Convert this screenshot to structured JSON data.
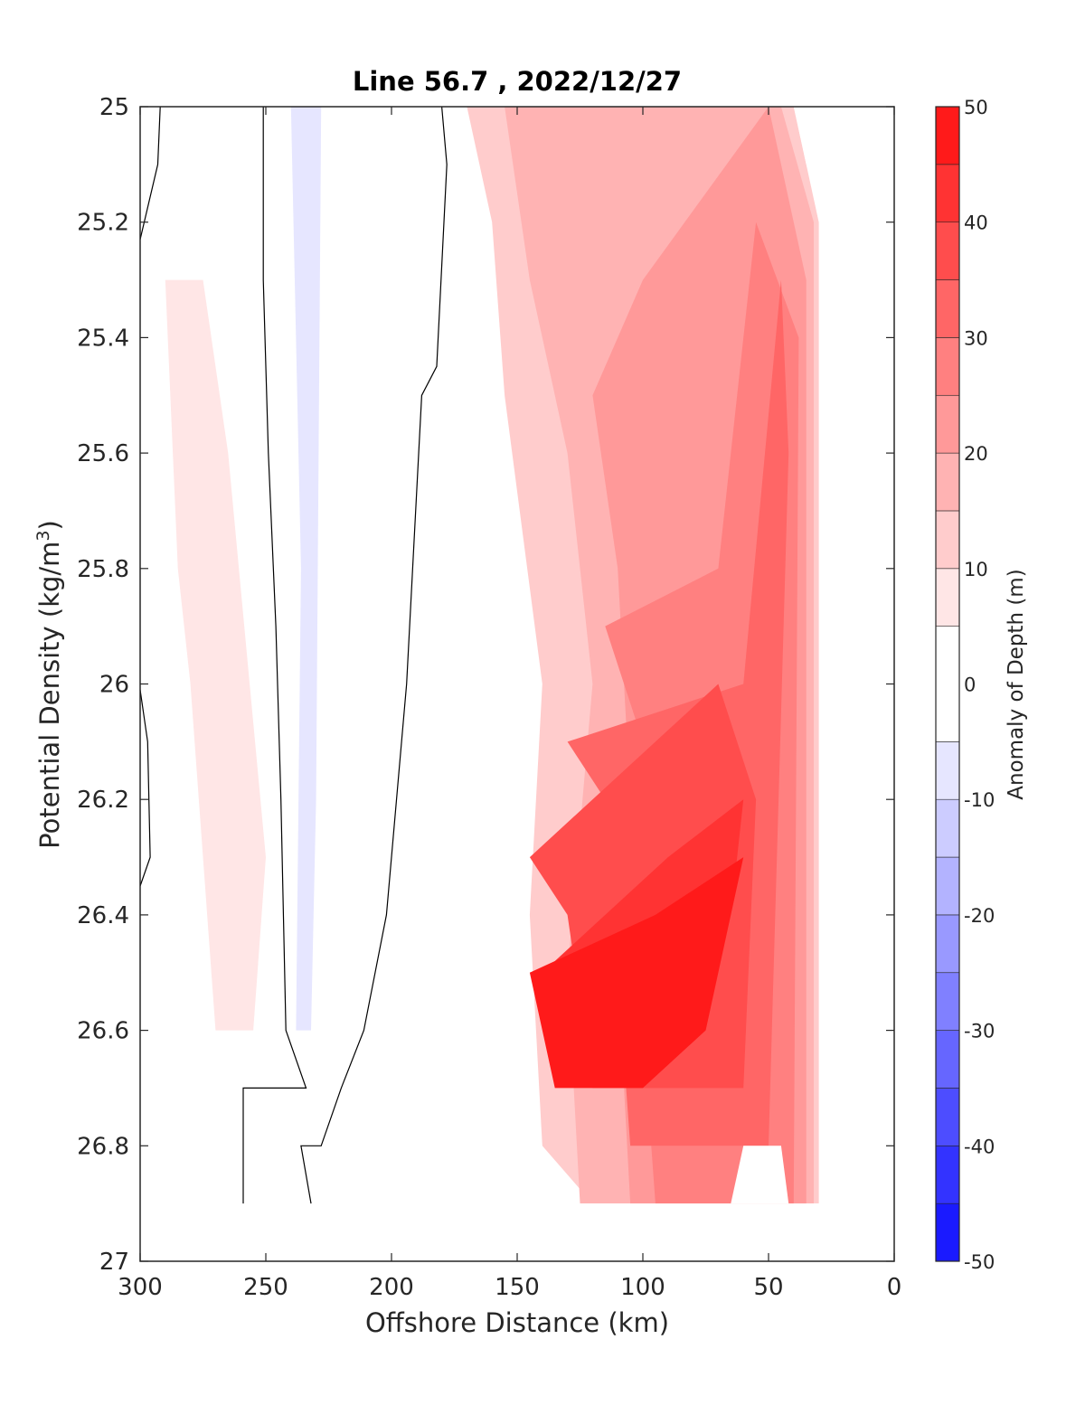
{
  "chart_data": {
    "type": "contour",
    "title": "Line 56.7 , 2022/12/27",
    "xlabel": "Offshore Distance (km)",
    "ylabel_main": "Potential Density (kg/m",
    "ylabel_sup": "3",
    "ylabel_close": ")",
    "colorbar_label": "Anomaly of Depth (m)",
    "xlim": [
      300,
      0
    ],
    "ylim": [
      25,
      27
    ],
    "x_reversed": true,
    "y_reversed": true,
    "x_ticks": [
      300,
      250,
      200,
      150,
      100,
      50,
      0
    ],
    "x_tick_labels": [
      "300",
      "250",
      "200",
      "150",
      "100",
      "50",
      "0"
    ],
    "y_ticks": [
      25,
      25.2,
      25.4,
      25.6,
      25.8,
      26,
      26.2,
      26.4,
      26.6,
      26.8,
      27
    ],
    "y_tick_labels": [
      "25",
      "25.2",
      "25.4",
      "25.6",
      "25.8",
      "26",
      "26.2",
      "26.4",
      "26.6",
      "26.8",
      "27"
    ],
    "colorbar": {
      "range": [
        -50,
        50
      ],
      "tick_values": [
        50,
        40,
        30,
        20,
        10,
        0,
        -10,
        -20,
        -30,
        -40,
        -50
      ],
      "tick_labels": [
        "50",
        "40",
        "30",
        "20",
        "10",
        "0",
        "-10",
        "-20",
        "-30",
        "-40",
        "-50"
      ],
      "levels": [
        -50,
        -45,
        -40,
        -35,
        -30,
        -25,
        -20,
        -15,
        -10,
        -5,
        5,
        10,
        15,
        20,
        25,
        30,
        35,
        40,
        45,
        50
      ],
      "colors": [
        "#0000ff",
        "#1a1aff",
        "#3333ff",
        "#4d4dff",
        "#6666ff",
        "#8080ff",
        "#9999ff",
        "#b3b3ff",
        "#ccccff",
        "#e6e6ff",
        "#ffffff",
        "#ffe6e6",
        "#ffcccc",
        "#ffb3b3",
        "#ff9999",
        "#ff8080",
        "#ff6666",
        "#ff4d4d",
        "#ff3333",
        "#ff1a1a",
        "#ff0000"
      ]
    },
    "zero_contour_lines": [
      [
        [
          300,
          25.23
        ],
        [
          293,
          25.1
        ],
        [
          292,
          25.0
        ]
      ],
      [
        [
          300,
          26.01
        ],
        [
          297,
          26.1
        ],
        [
          296,
          26.3
        ],
        [
          300,
          26.35
        ]
      ],
      [
        [
          251,
          25.0
        ],
        [
          251,
          25.3
        ],
        [
          249,
          25.6
        ],
        [
          246,
          25.9
        ],
        [
          244,
          26.2
        ],
        [
          242,
          26.6
        ],
        [
          234,
          26.7
        ],
        [
          259,
          26.7
        ],
        [
          259,
          26.9
        ]
      ],
      [
        [
          180,
          25.0
        ],
        [
          178,
          25.1
        ],
        [
          182,
          25.45
        ],
        [
          188,
          25.5
        ],
        [
          194,
          26.0
        ],
        [
          202,
          26.4
        ],
        [
          211,
          26.6
        ],
        [
          220,
          26.7
        ],
        [
          228,
          26.8
        ],
        [
          236,
          26.8
        ],
        [
          232,
          26.9
        ]
      ]
    ],
    "regions": [
      {
        "level": 10,
        "points": [
          [
            170,
            25.0
          ],
          [
            160,
            25.2
          ],
          [
            155,
            25.5
          ],
          [
            140,
            26.0
          ],
          [
            145,
            26.4
          ],
          [
            140,
            26.8
          ],
          [
            120,
            26.9
          ],
          [
            30,
            26.9
          ],
          [
            30,
            25.2
          ],
          [
            40,
            25.0
          ]
        ]
      },
      {
        "level": 15,
        "points": [
          [
            155,
            25.0
          ],
          [
            145,
            25.3
          ],
          [
            130,
            25.6
          ],
          [
            120,
            26.0
          ],
          [
            130,
            26.5
          ],
          [
            125,
            26.9
          ],
          [
            32,
            26.9
          ],
          [
            32,
            25.2
          ],
          [
            45,
            25.0
          ]
        ]
      },
      {
        "level": 20,
        "points": [
          [
            120,
            25.5
          ],
          [
            110,
            25.8
          ],
          [
            105,
            26.2
          ],
          [
            110,
            26.5
          ],
          [
            105,
            26.9
          ],
          [
            35,
            26.9
          ],
          [
            35,
            25.3
          ],
          [
            50,
            25.0
          ],
          [
            100,
            25.3
          ]
        ]
      },
      {
        "level": 25,
        "points": [
          [
            115,
            25.9
          ],
          [
            100,
            26.1
          ],
          [
            95,
            26.3
          ],
          [
            100,
            26.6
          ],
          [
            95,
            26.9
          ],
          [
            40,
            26.9
          ],
          [
            38,
            25.4
          ],
          [
            55,
            25.2
          ],
          [
            70,
            25.8
          ]
        ]
      },
      {
        "level": 30,
        "points": [
          [
            130,
            26.1
          ],
          [
            115,
            26.2
          ],
          [
            110,
            26.5
          ],
          [
            105,
            26.8
          ],
          [
            50,
            26.8
          ],
          [
            42,
            25.6
          ],
          [
            45,
            25.3
          ],
          [
            60,
            26.0
          ]
        ]
      },
      {
        "level": 35,
        "points": [
          [
            145,
            26.3
          ],
          [
            130,
            26.4
          ],
          [
            120,
            26.7
          ],
          [
            60,
            26.7
          ],
          [
            55,
            26.2
          ],
          [
            70,
            26.0
          ]
        ]
      },
      {
        "level": 40,
        "points": [
          [
            140,
            26.5
          ],
          [
            130,
            26.6
          ],
          [
            95,
            26.6
          ],
          [
            65,
            26.4
          ],
          [
            60,
            26.2
          ],
          [
            90,
            26.3
          ]
        ]
      },
      {
        "level": 45,
        "points": [
          [
            145,
            26.5
          ],
          [
            135,
            26.7
          ],
          [
            100,
            26.7
          ],
          [
            75,
            26.6
          ],
          [
            60,
            26.3
          ],
          [
            95,
            26.4
          ]
        ]
      },
      {
        "level": -10,
        "points": [
          [
            240,
            25.0
          ],
          [
            228,
            25.0
          ],
          [
            230,
            26.2
          ],
          [
            232,
            26.6
          ],
          [
            238,
            26.6
          ],
          [
            236,
            25.8
          ]
        ]
      },
      {
        "level": 5,
        "points": [
          [
            290,
            25.3
          ],
          [
            285,
            25.8
          ],
          [
            280,
            26.0
          ],
          [
            270,
            26.6
          ],
          [
            255,
            26.6
          ],
          [
            250,
            26.3
          ],
          [
            265,
            25.6
          ],
          [
            275,
            25.3
          ]
        ]
      }
    ],
    "white_masks": [
      {
        "label": "no data top-right",
        "points": [
          [
            40,
            25.0
          ],
          [
            0,
            25.0
          ],
          [
            0,
            25.2
          ],
          [
            25,
            25.2
          ],
          [
            30,
            25.1
          ],
          [
            35,
            25.1
          ]
        ]
      },
      {
        "label": "no data bottom",
        "points": [
          [
            300,
            26.9
          ],
          [
            0,
            26.9
          ],
          [
            0,
            27.0
          ],
          [
            300,
            27.0
          ]
        ]
      },
      {
        "label": "no data bottom-right",
        "points": [
          [
            60,
            26.8
          ],
          [
            45,
            26.8
          ],
          [
            42,
            26.9
          ],
          [
            65,
            26.9
          ]
        ]
      }
    ]
  }
}
